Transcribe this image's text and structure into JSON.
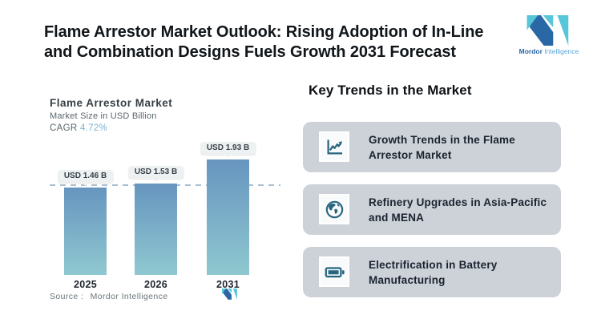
{
  "header": {
    "title_line1": "Flame Arrestor Market Outlook: Rising Adoption of In-Line",
    "title_line2": "and Combination Designs Fuels Growth 2031 Forecast"
  },
  "brand": {
    "name_bold": "Mordor",
    "name_light": "Intelligence"
  },
  "chart_panel": {
    "title": "Flame Arrestor Market",
    "subtitle": "Market Size in USD Billion",
    "cagr_label": "CAGR",
    "cagr_value": "4.72%",
    "source_label": "Source :",
    "source_value": "Mordor Intelligence"
  },
  "chart_data": {
    "type": "bar",
    "title": "Flame Arrestor Market",
    "ylabel": "Market Size in USD Billion",
    "cagr": "4.72%",
    "categories": [
      "2025",
      "2026",
      "2031"
    ],
    "values": [
      1.46,
      1.53,
      1.93
    ],
    "bar_labels": [
      "USD 1.46 B",
      "USD 1.53 B",
      "USD 1.93 B"
    ],
    "ylim": [
      0,
      2.2
    ],
    "reference_line_value": 1.5,
    "grid": false,
    "legend": false,
    "source": "Mordor Intelligence"
  },
  "trends": {
    "heading": "Key Trends in the Market",
    "items": [
      {
        "icon": "line-chart-icon",
        "label": "Growth Trends in the Flame Arrestor Market"
      },
      {
        "icon": "globe-icon",
        "label": "Refinery Upgrades in Asia-Pacific and MENA"
      },
      {
        "icon": "battery-icon",
        "label": "Electrification in Battery Manufacturing"
      }
    ]
  },
  "colors": {
    "bar_top": "#6795bf",
    "bar_bottom": "#8fc8d0",
    "dashed_line": "#a9bfcf",
    "cagr_value": "#79b2d6",
    "card_bg": "#cdd2d9",
    "icon": "#27657f",
    "brand_navy": "#2a67a5",
    "brand_teal": "#56c6d8"
  }
}
